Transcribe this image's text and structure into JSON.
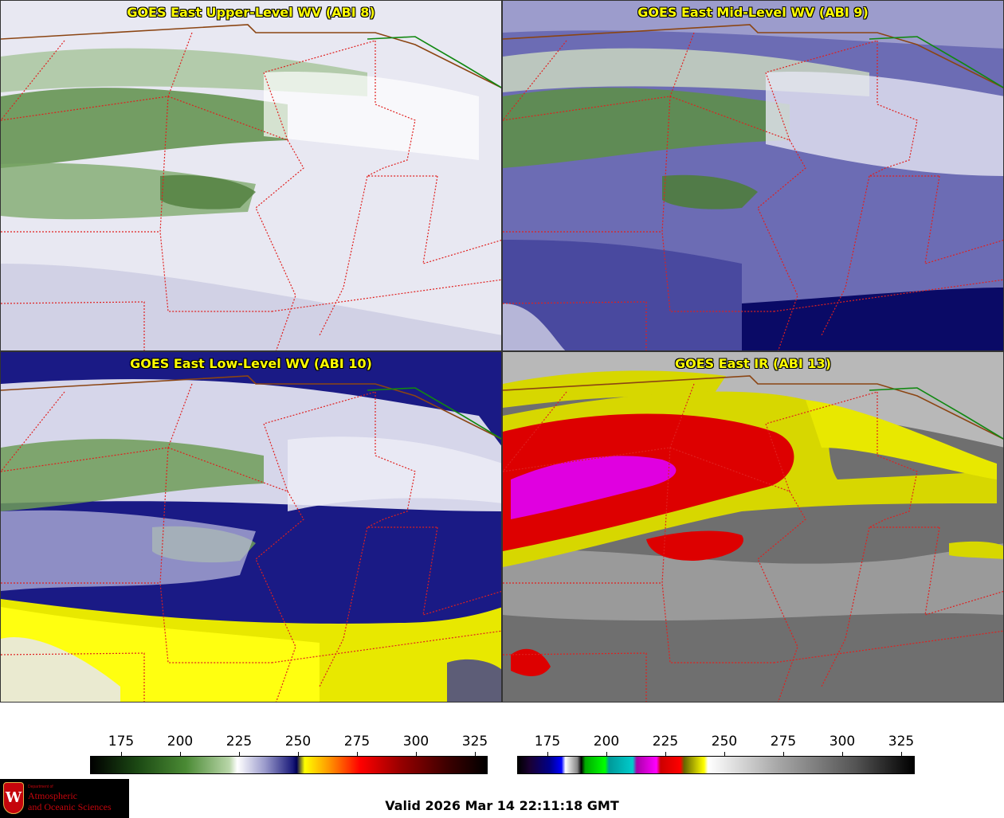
{
  "panels": [
    {
      "title": "GOES East Upper-Level WV (ABI 8)"
    },
    {
      "title": "GOES East Mid-Level WV (ABI 9)"
    },
    {
      "title": "GOES East Low-Level WV (ABI 10)"
    },
    {
      "title": "GOES East IR (ABI 13)"
    }
  ],
  "colorbar_wv": {
    "ticks": [
      "175",
      "200",
      "225",
      "250",
      "275",
      "300",
      "325"
    ]
  },
  "colorbar_ir": {
    "ticks": [
      "175",
      "200",
      "225",
      "250",
      "275",
      "300",
      "325"
    ]
  },
  "logo": {
    "crest_letter": "W",
    "dept": "Department of",
    "line1": "Atmospheric",
    "line2": "and Oceanic Sciences"
  },
  "valid_text": "Valid 2026 Mar 14 22:11:18 GMT"
}
